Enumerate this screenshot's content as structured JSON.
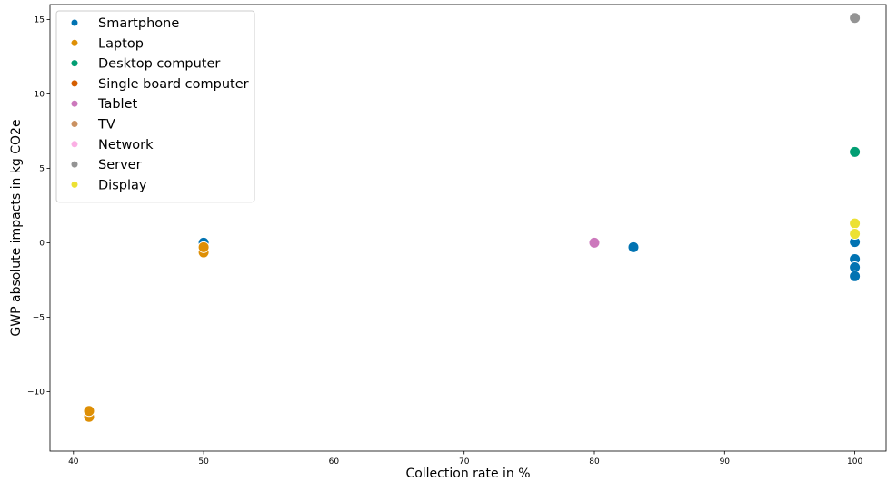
{
  "chart_data": {
    "type": "scatter",
    "title": "",
    "xlabel": "Collection rate in %",
    "ylabel": "GWP absolute impacts in kg CO2e",
    "xlim": [
      38.2,
      102.4
    ],
    "ylim": [
      -14.0,
      16.0
    ],
    "xticks": [
      40,
      50,
      60,
      70,
      80,
      90,
      100
    ],
    "yticks": [
      -10,
      -5,
      0,
      5,
      10,
      15
    ],
    "ytick_labels": [
      "−10",
      "−5",
      "0",
      "5",
      "10",
      "15"
    ],
    "grid": false,
    "legend_position": "top-left",
    "series": [
      {
        "name": "Smartphone",
        "color": "#0173b2",
        "points": [
          [
            50,
            0.0
          ],
          [
            83,
            -0.3
          ],
          [
            100,
            0.05
          ],
          [
            100,
            -1.1
          ],
          [
            100,
            -1.65
          ],
          [
            100,
            -2.25
          ]
        ]
      },
      {
        "name": "Laptop",
        "color": "#de8f05",
        "points": [
          [
            41.2,
            -11.7
          ],
          [
            41.2,
            -11.3
          ],
          [
            50,
            -0.65
          ],
          [
            50,
            -0.3
          ]
        ]
      },
      {
        "name": "Desktop computer",
        "color": "#029e73",
        "points": [
          [
            100,
            6.1
          ]
        ]
      },
      {
        "name": "Single board computer",
        "color": "#d55e00",
        "points": []
      },
      {
        "name": "Tablet",
        "color": "#cc78bc",
        "points": [
          [
            80,
            0.0
          ]
        ]
      },
      {
        "name": "TV",
        "color": "#ca9161",
        "points": []
      },
      {
        "name": "Network",
        "color": "#fbafe4",
        "points": []
      },
      {
        "name": "Server",
        "color": "#949494",
        "points": [
          [
            100,
            15.1
          ]
        ]
      },
      {
        "name": "Display",
        "color": "#ece133",
        "points": [
          [
            100,
            1.3
          ],
          [
            100,
            0.6
          ]
        ]
      }
    ]
  }
}
